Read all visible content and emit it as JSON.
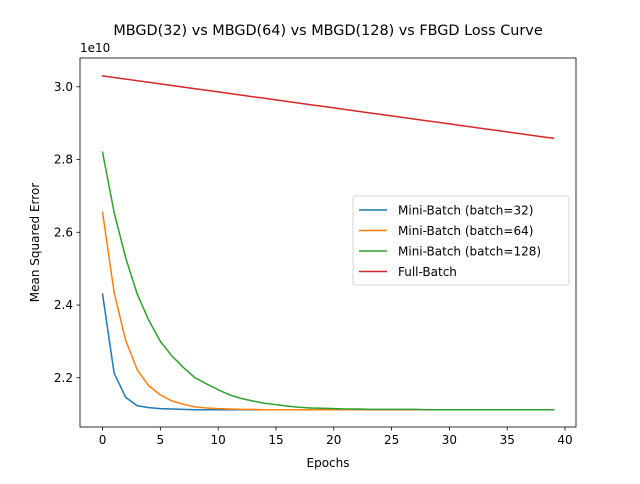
{
  "chart_data": {
    "type": "line",
    "title": "MBGD(32) vs MBGD(64) vs MBGD(128) vs FBGD Loss Curve",
    "xlabel": "Epochs",
    "ylabel": "Mean Squared Error",
    "y_offset_label": "1e10",
    "y_scale_factor": 10000000000,
    "xlim": [
      -1.95,
      40.95
    ],
    "ylim": [
      2.0646,
      3.0792
    ],
    "x_ticks": [
      0,
      5,
      10,
      15,
      20,
      25,
      30,
      35,
      40
    ],
    "y_ticks": [
      2.2,
      2.4,
      2.6,
      2.8,
      3.0
    ],
    "x_tick_labels": [
      "0",
      "5",
      "10",
      "15",
      "20",
      "25",
      "30",
      "35",
      "40"
    ],
    "y_tick_labels": [
      "2.2",
      "2.4",
      "2.6",
      "2.8",
      "3.0"
    ],
    "grid": false,
    "legend_position": "center-right",
    "x": [
      0,
      1,
      2,
      3,
      4,
      5,
      6,
      7,
      8,
      9,
      10,
      11,
      12,
      13,
      14,
      15,
      16,
      17,
      18,
      19,
      20,
      21,
      22,
      23,
      24,
      25,
      26,
      27,
      28,
      29,
      30,
      31,
      32,
      33,
      34,
      35,
      36,
      37,
      38,
      39
    ],
    "series": [
      {
        "name": "Mini-Batch (batch=32)",
        "color": "#1f77b4",
        "values": [
          2.43,
          2.213,
          2.146,
          2.123,
          2.118,
          2.115,
          2.114,
          2.113,
          2.112,
          2.112,
          2.112,
          2.112,
          2.112,
          2.112,
          2.112,
          2.112,
          2.112,
          2.112,
          2.112,
          2.112,
          2.112,
          2.112,
          2.112,
          2.112,
          2.112,
          2.112,
          2.112,
          2.112,
          2.112,
          2.112,
          2.112,
          2.112,
          2.112,
          2.112,
          2.112,
          2.112,
          2.112,
          2.112,
          2.112,
          2.112
        ]
      },
      {
        "name": "Mini-Batch (batch=64)",
        "color": "#ff7f0e",
        "values": [
          2.655,
          2.435,
          2.303,
          2.222,
          2.178,
          2.153,
          2.136,
          2.127,
          2.12,
          2.117,
          2.115,
          2.114,
          2.113,
          2.113,
          2.112,
          2.112,
          2.112,
          2.112,
          2.112,
          2.112,
          2.112,
          2.112,
          2.112,
          2.112,
          2.112,
          2.112,
          2.112,
          2.112,
          2.112,
          2.112,
          2.112,
          2.112,
          2.112,
          2.112,
          2.112,
          2.112,
          2.112,
          2.112,
          2.112,
          2.112
        ]
      },
      {
        "name": "Mini-Batch (batch=128)",
        "color": "#2ca02c",
        "values": [
          2.82,
          2.655,
          2.53,
          2.43,
          2.358,
          2.3,
          2.26,
          2.228,
          2.2,
          2.183,
          2.167,
          2.153,
          2.143,
          2.136,
          2.13,
          2.126,
          2.122,
          2.119,
          2.117,
          2.116,
          2.115,
          2.114,
          2.114,
          2.113,
          2.113,
          2.113,
          2.113,
          2.113,
          2.112,
          2.112,
          2.112,
          2.112,
          2.112,
          2.112,
          2.112,
          2.112,
          2.112,
          2.112,
          2.112,
          2.112
        ]
      },
      {
        "name": "Full-Batch",
        "color": "#d62728",
        "values": [
          3.03,
          3.0256,
          3.0212,
          3.0168,
          3.0124,
          3.008,
          3.0036,
          2.9992,
          2.9948,
          2.9904,
          2.986,
          2.9816,
          2.9772,
          2.9728,
          2.9684,
          2.964,
          2.9596,
          2.9552,
          2.9508,
          2.9464,
          2.942,
          2.9376,
          2.9332,
          2.9288,
          2.9244,
          2.92,
          2.9156,
          2.9112,
          2.9068,
          2.9024,
          2.898,
          2.8936,
          2.8892,
          2.8848,
          2.8804,
          2.876,
          2.8716,
          2.8672,
          2.8628,
          2.8584
        ]
      }
    ]
  }
}
